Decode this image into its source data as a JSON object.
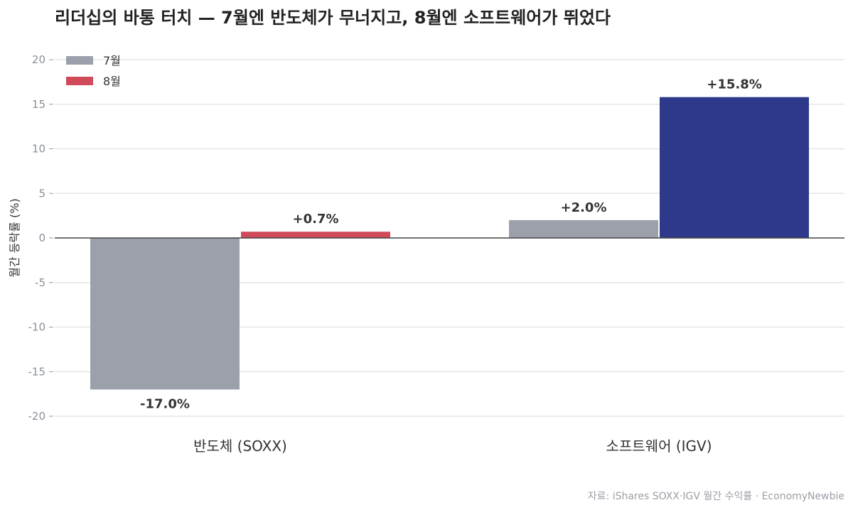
{
  "chart_data": {
    "type": "bar",
    "title": "리더십의 바통 터치 — 7월엔 반도체가 무너지고, 8월엔 소프트웨어가 뛰었다",
    "ylabel": "월간 등락률 (%)",
    "xlabel": "",
    "ylim": [
      -20,
      20
    ],
    "yticks": [
      20,
      15,
      10,
      5,
      0,
      -5,
      -10,
      -15,
      -20
    ],
    "categories": [
      "반도체 (SOXX)",
      "소프트웨어 (IGV)"
    ],
    "series": [
      {
        "name": "7월",
        "values": [
          -17.0,
          2.0
        ],
        "labels": [
          "-17.0%",
          "+2.0%"
        ],
        "colors": [
          "#9ba0ab",
          "#9ba0ab"
        ]
      },
      {
        "name": "8월",
        "values": [
          0.7,
          15.8
        ],
        "labels": [
          "+0.7%",
          "+15.8%"
        ],
        "colors": [
          "#d04a5a",
          "#2e398c"
        ]
      }
    ],
    "legend": {
      "position": "top-left",
      "entries": [
        {
          "label": "7월",
          "color": "#9ba0ab"
        },
        {
          "label": "8월",
          "color": "#d04a5a"
        }
      ]
    },
    "grid": true,
    "source": "자료: iShares SOXX·IGV 월간 수익률 · EconomyNewbie"
  }
}
